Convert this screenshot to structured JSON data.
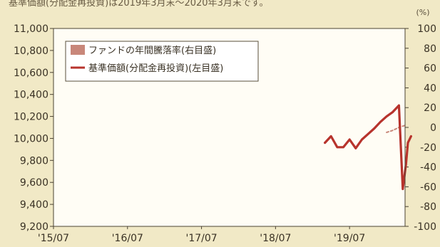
{
  "header_text": "基準価額(分配金再投資)は2019年3月末〜2020年3月末です。",
  "chart_data": {
    "type": "line",
    "title": "",
    "legend_placement": "top-left",
    "grid": false,
    "x_axis": {
      "tick_labels": [
        "'15/07",
        "'16/07",
        "'17/07",
        "'18/07",
        "'19/07"
      ],
      "tick_dates": [
        "2015-07",
        "2016-07",
        "2017-07",
        "2018-07",
        "2019-07"
      ],
      "range": [
        "2015-07",
        "2020-04"
      ]
    },
    "y_left": {
      "range": [
        9200,
        11000
      ],
      "ticks": [
        "9,200",
        "9,400",
        "9,600",
        "9,800",
        "10,000",
        "10,200",
        "10,400",
        "10,600",
        "10,800",
        "11,000"
      ]
    },
    "y_right": {
      "unit": "(%)",
      "range": [
        -100,
        100
      ],
      "ticks": [
        "-100",
        "-80",
        "-60",
        "-40",
        "-20",
        "0",
        "20",
        "40",
        "60",
        "80",
        "100"
      ]
    },
    "series": [
      {
        "name": "ファンドの年間騰落率(右目盛)",
        "axis": "right",
        "style": "dotted",
        "color": "#c8877a",
        "points": [
          {
            "x": "2020-01",
            "y": -5
          },
          {
            "x": "2020-02",
            "y": -3
          },
          {
            "x": "2020-03",
            "y": 0
          },
          {
            "x": "2020-04",
            "y": 2
          }
        ]
      },
      {
        "name": "基準価額(分配金再投資)(左目盛)",
        "axis": "left",
        "style": "solid",
        "color": "#b7332c",
        "points": [
          {
            "x": "2019-03",
            "y": 9960
          },
          {
            "x": "2019-04",
            "y": 10020
          },
          {
            "x": "2019-05",
            "y": 9920
          },
          {
            "x": "2019-06",
            "y": 9920
          },
          {
            "x": "2019-07",
            "y": 9990
          },
          {
            "x": "2019-08",
            "y": 9910
          },
          {
            "x": "2019-09",
            "y": 9990
          },
          {
            "x": "2019-10",
            "y": 10040
          },
          {
            "x": "2019-11",
            "y": 10090
          },
          {
            "x": "2019-12",
            "y": 10150
          },
          {
            "x": "2020-01",
            "y": 10200
          },
          {
            "x": "2020-02",
            "y": 10240
          },
          {
            "x": "2020-03",
            "y": 10300
          },
          {
            "x": "2020-03-20",
            "y": 9540
          },
          {
            "x": "2020-04-05",
            "y": 9760
          },
          {
            "x": "2020-04-15",
            "y": 9960
          },
          {
            "x": "2020-04-30",
            "y": 10020
          }
        ]
      }
    ]
  }
}
